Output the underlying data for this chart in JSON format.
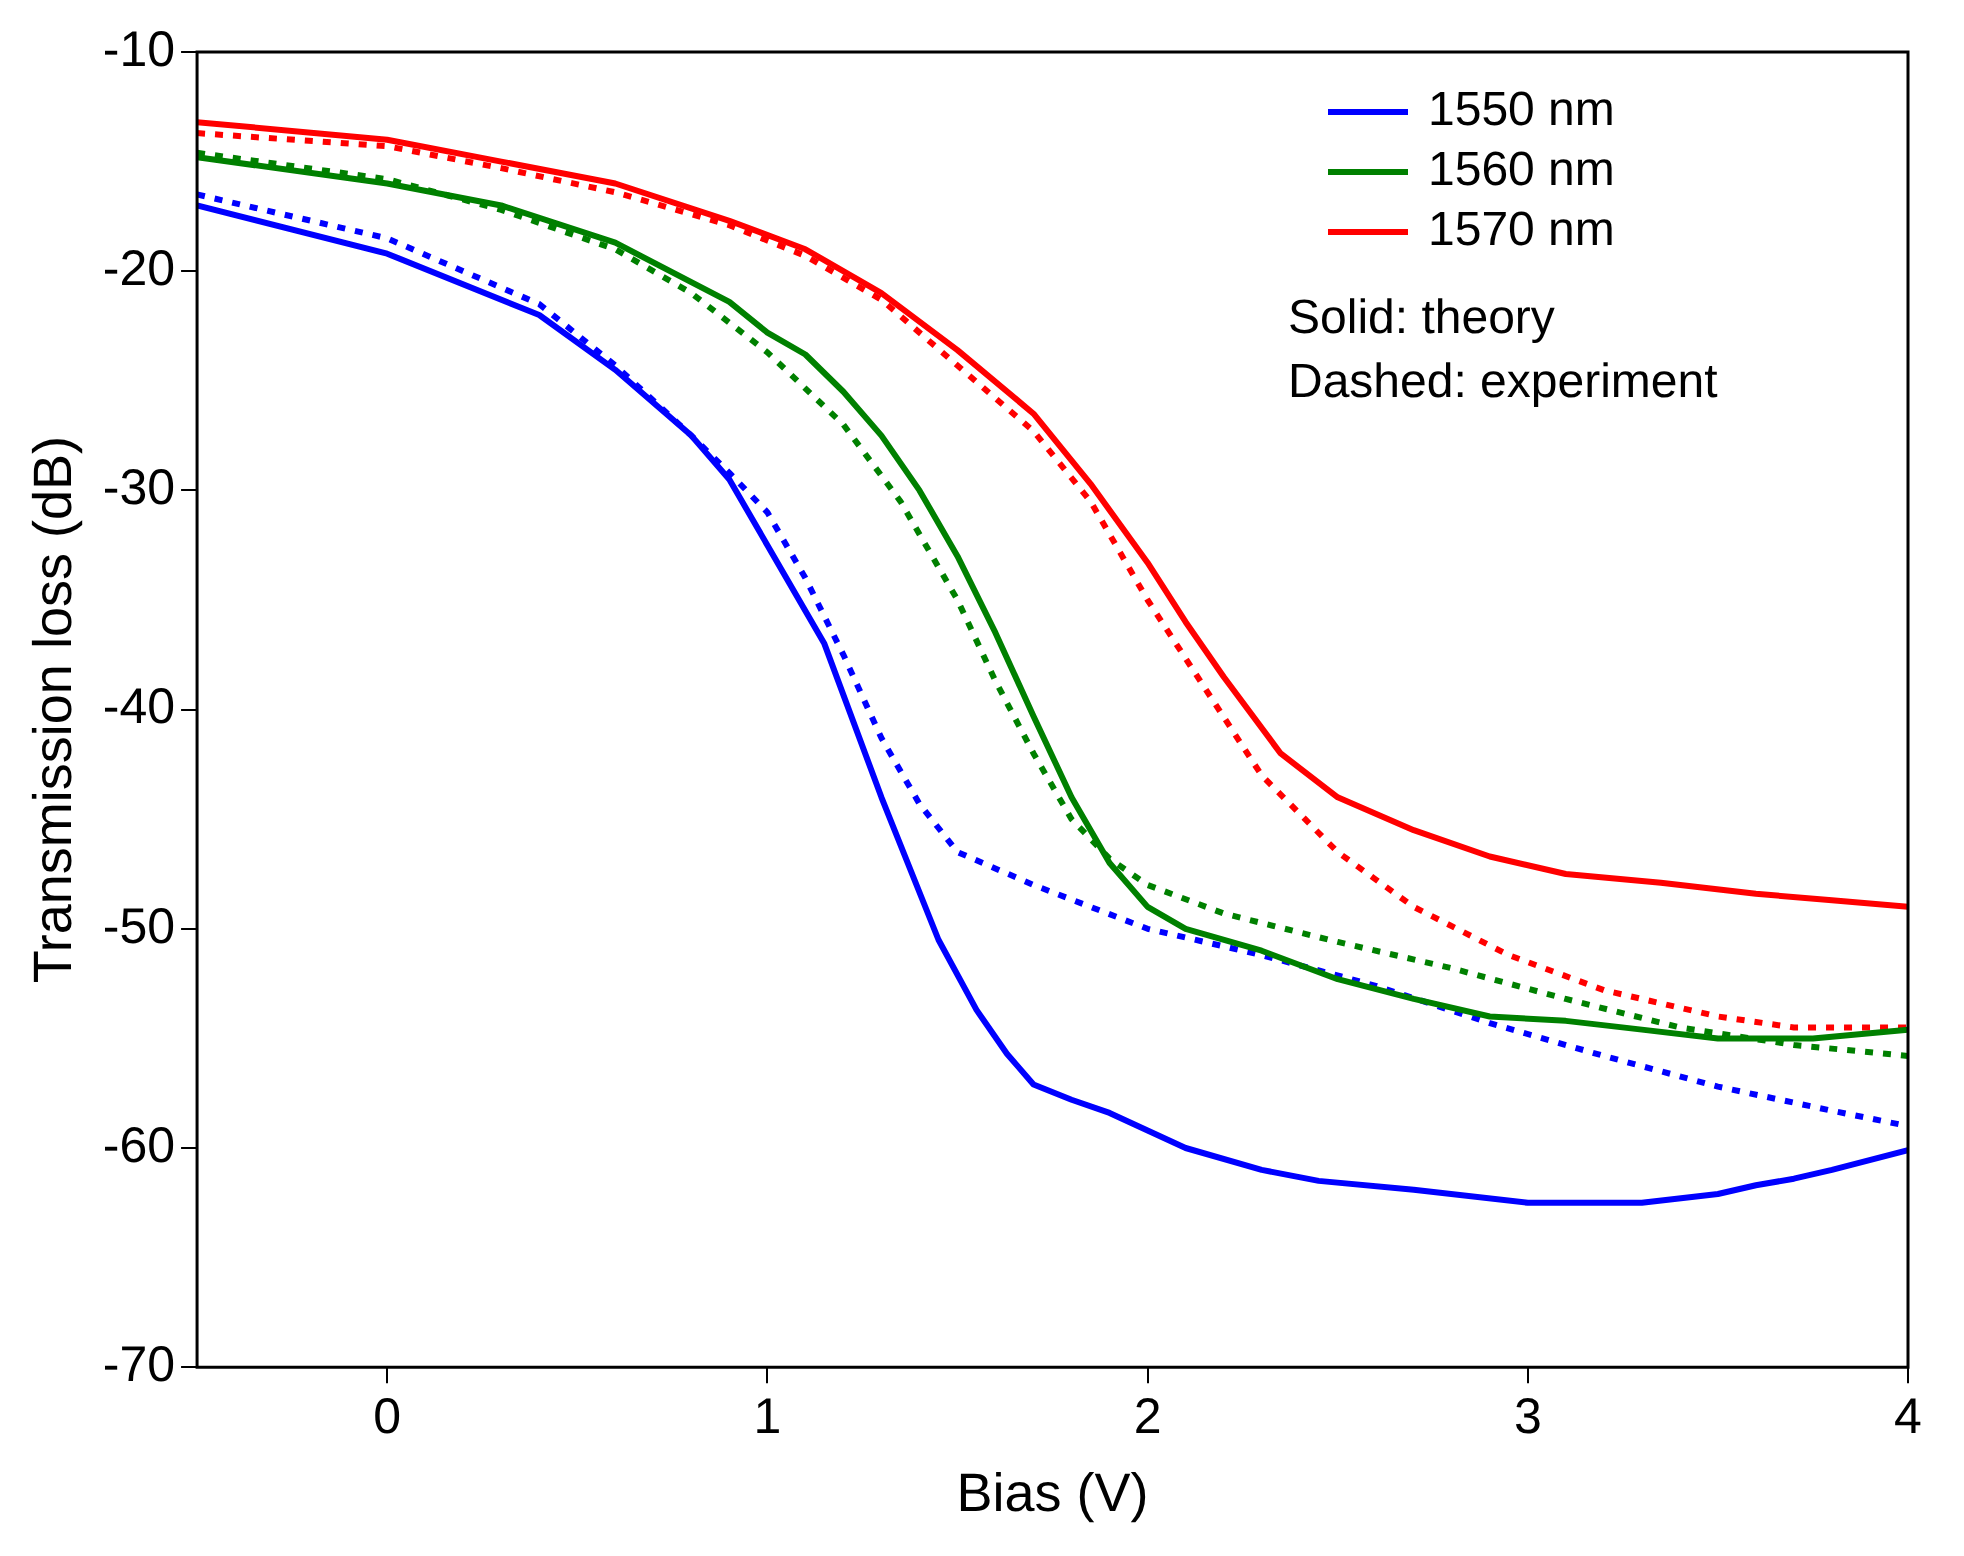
{
  "chart_data": {
    "type": "line",
    "xlabel": "Bias (V)",
    "ylabel": "Transmission loss (dB)",
    "xlim": [
      -0.5,
      4
    ],
    "xticks": [
      0,
      1,
      2,
      3,
      4
    ],
    "ylim": [
      -70,
      -10
    ],
    "yticks": [
      -70,
      -60,
      -50,
      -40,
      -30,
      -20,
      -10
    ],
    "grid": false,
    "legend": "top right",
    "marker": "none",
    "annotations": [
      "Solid: theory",
      "Dashed: experiment"
    ],
    "series": [
      {
        "name": "1550 nm",
        "color": "#0000ff",
        "line_style": "solid",
        "x": [
          -0.5,
          0,
          0.4,
          0.6,
          0.8,
          0.9,
          1,
          1.15,
          1.3,
          1.45,
          1.55,
          1.63,
          1.7,
          1.8,
          1.9,
          2.0,
          2.1,
          2.3,
          2.45,
          2.7,
          3.0,
          3.3,
          3.5,
          3.6,
          3.7,
          3.8,
          4.0
        ],
        "values": [
          -17,
          -19.2,
          -22,
          -24.5,
          -27.5,
          -29.5,
          -32.5,
          -37,
          -44,
          -50.5,
          -53.7,
          -55.7,
          -57.1,
          -57.8,
          -58.4,
          -59.2,
          -60,
          -61,
          -61.5,
          -61.9,
          -62.5,
          -62.5,
          -62.1,
          -61.7,
          -61.4,
          -61,
          -60.1
        ]
      },
      {
        "name": "1560 nm",
        "color": "#008000",
        "line_style": "solid",
        "x": [
          -0.5,
          0,
          0.3,
          0.6,
          0.9,
          1.0,
          1.1,
          1.2,
          1.3,
          1.4,
          1.5,
          1.6,
          1.7,
          1.8,
          1.9,
          2.0,
          2.1,
          2.3,
          2.5,
          2.7,
          2.9,
          3.1,
          3.3,
          3.5,
          3.75,
          4
        ],
        "values": [
          -14.8,
          -16,
          -17,
          -18.7,
          -21.4,
          -22.8,
          -23.8,
          -25.5,
          -27.5,
          -30,
          -33,
          -36.5,
          -40.3,
          -44,
          -47,
          -49,
          -50,
          -51,
          -52.3,
          -53.2,
          -54,
          -54.2,
          -54.6,
          -55,
          -55,
          -54.6
        ]
      },
      {
        "name": "1570 nm",
        "color": "#ff0000",
        "line_style": "solid",
        "x": [
          -0.5,
          0,
          0.3,
          0.6,
          0.9,
          1.1,
          1.3,
          1.5,
          1.7,
          1.85,
          2.0,
          2.1,
          2.2,
          2.35,
          2.5,
          2.7,
          2.9,
          3.1,
          3.35,
          3.6,
          3.8,
          4.0
        ],
        "values": [
          -13.2,
          -14,
          -15,
          -16,
          -17.7,
          -19,
          -21,
          -23.6,
          -26.5,
          -29.7,
          -33.3,
          -36,
          -38.5,
          -42,
          -44,
          -45.5,
          -46.7,
          -47.5,
          -47.9,
          -48.4,
          -48.7,
          -49
        ]
      },
      {
        "color": "#0000ff",
        "line_style": "dotted",
        "x": [
          -0.5,
          0,
          0.4,
          0.6,
          0.8,
          0.9,
          1,
          1.1,
          1.2,
          1.3,
          1.4,
          1.5,
          1.7,
          2.0,
          2.3,
          2.6,
          2.9,
          3.2,
          3.5,
          3.8,
          4.0
        ],
        "values": [
          -16.5,
          -18.5,
          -21.5,
          -24.3,
          -27.5,
          -29.2,
          -31,
          -34,
          -37.5,
          -41.3,
          -44.3,
          -46.5,
          -48,
          -50,
          -51.2,
          -52.6,
          -54.3,
          -55.8,
          -57.2,
          -58.3,
          -59
        ]
      },
      {
        "color": "#008000",
        "line_style": "dotted",
        "x": [
          -0.5,
          0,
          0.3,
          0.6,
          0.8,
          1,
          1.2,
          1.35,
          1.5,
          1.6,
          1.7,
          1.8,
          1.9,
          2.0,
          2.2,
          2.5,
          2.8,
          3.1,
          3.4,
          3.7,
          4
        ],
        "values": [
          -14.6,
          -15.8,
          -17.2,
          -19,
          -21,
          -23.7,
          -27,
          -30.5,
          -35,
          -38.7,
          -42,
          -45,
          -46.8,
          -48,
          -49.3,
          -50.6,
          -51.8,
          -53.2,
          -54.5,
          -55.3,
          -55.8
        ]
      },
      {
        "color": "#ff0000",
        "line_style": "dotted",
        "x": [
          -0.5,
          0,
          0.3,
          0.6,
          0.9,
          1.1,
          1.3,
          1.5,
          1.7,
          1.85,
          2.0,
          2.15,
          2.3,
          2.5,
          2.7,
          2.95,
          3.2,
          3.5,
          3.7,
          4
        ],
        "values": [
          -13.7,
          -14.3,
          -15.3,
          -16.4,
          -17.9,
          -19.3,
          -21.3,
          -24.3,
          -27.3,
          -30.5,
          -35,
          -39,
          -43,
          -46.5,
          -49,
          -51.2,
          -52.8,
          -54,
          -54.5,
          -54.5
        ]
      }
    ]
  }
}
